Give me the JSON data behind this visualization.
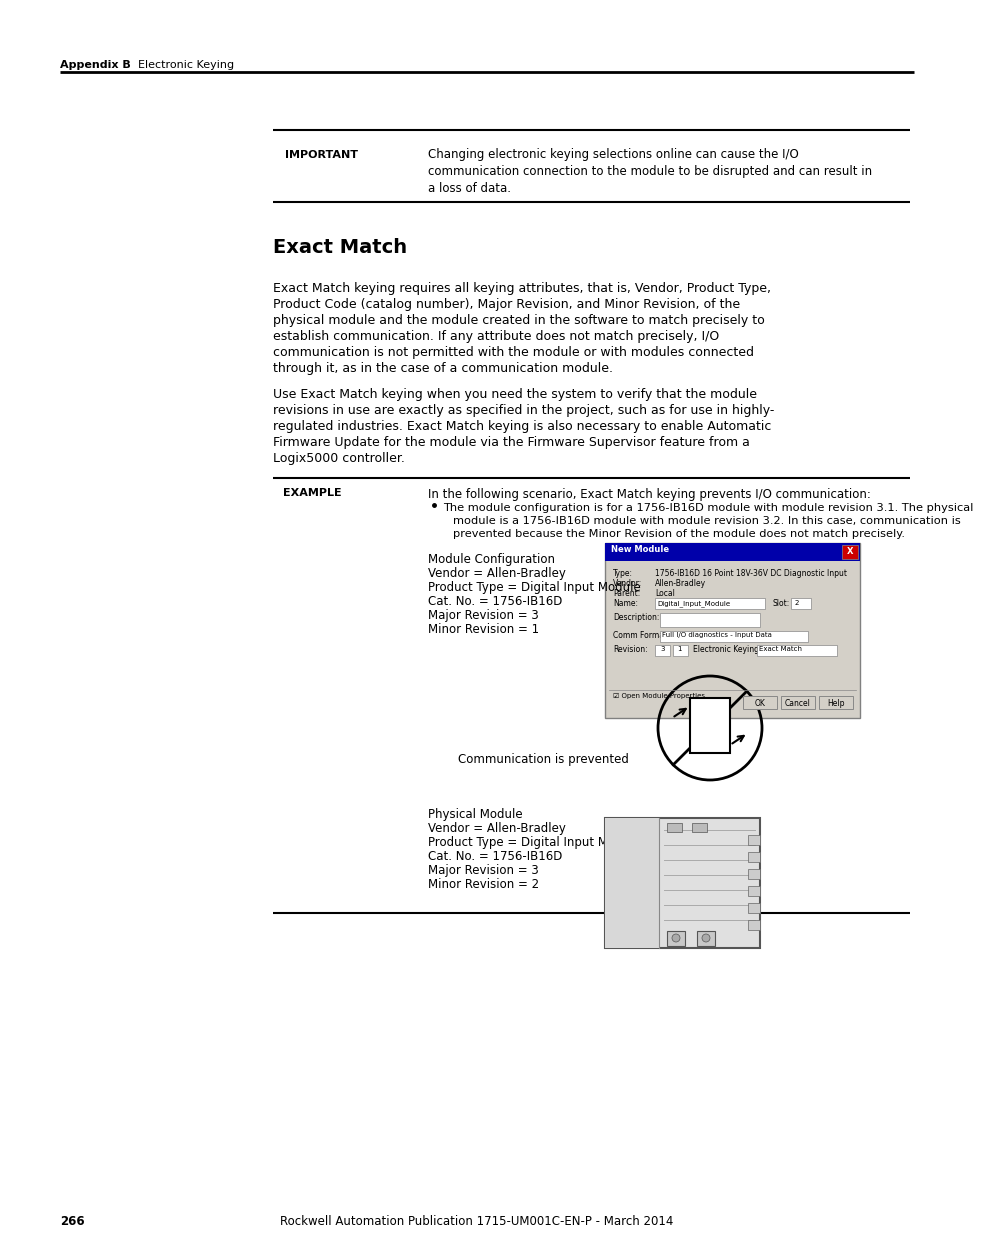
{
  "page_number": "266",
  "footer_text": "Rockwell Automation Publication 1715-UM001C-EN-P - March 2014",
  "header_left_bold": "Appendix B",
  "header_left_normal": "    Electronic Keying",
  "important_label": "IMPORTANT",
  "important_text_line1": "Changing electronic keying selections online can cause the I/O",
  "important_text_line2": "communication connection to the module to be disrupted and can result in",
  "important_text_line3": "a loss of data.",
  "section_title": "Exact Match",
  "para1_lines": [
    "Exact Match keying requires all keying attributes, that is, Vendor, Product Type,",
    "Product Code (catalog number), Major Revision, and Minor Revision, of the",
    "physical module and the module created in the software to match precisely to",
    "establish communication. If any attribute does not match precisely, I/O",
    "communication is not permitted with the module or with modules connected",
    "through it, as in the case of a communication module."
  ],
  "para2_lines": [
    "Use Exact Match keying when you need the system to verify that the module",
    "revisions in use are exactly as specified in the project, such as for use in highly-",
    "regulated industries. Exact Match keying is also necessary to enable Automatic",
    "Firmware Update for the module via the Firmware Supervisor feature from a",
    "Logix5000 controller."
  ],
  "example_label": "EXAMPLE",
  "example_intro": "In the following scenario, Exact Match keying prevents I/O communication:",
  "example_bullet": "The module configuration is for a 1756-IB16D module with module revision 3.1. The physical",
  "example_bullet2": "module is a 1756-IB16D module with module revision 3.2. In this case, communication is",
  "example_bullet3": "prevented because the Minor Revision of the module does not match precisely.",
  "mod_config_title": "Module Configuration",
  "mod_config_line1": "Vendor = Allen-Bradley",
  "mod_config_line2": "Product Type = Digital Input Module",
  "mod_config_line3": "Cat. No. = 1756-IB16D",
  "mod_config_line4": "Major Revision = 3",
  "mod_config_line5": "Minor Revision = 1",
  "comm_prevented_text": "Communication is prevented",
  "phys_mod_title": "Physical Module",
  "phys_mod_line1": "Vendor = Allen-Bradley",
  "phys_mod_line2": "Product Type = Digital Input Module",
  "phys_mod_line3": "Cat. No. = 1756-IB16D",
  "phys_mod_line4": "Major Revision = 3",
  "phys_mod_line5": "Minor Revision = 2",
  "bg_color": "#ffffff",
  "text_color": "#000000",
  "line_color": "#000000"
}
